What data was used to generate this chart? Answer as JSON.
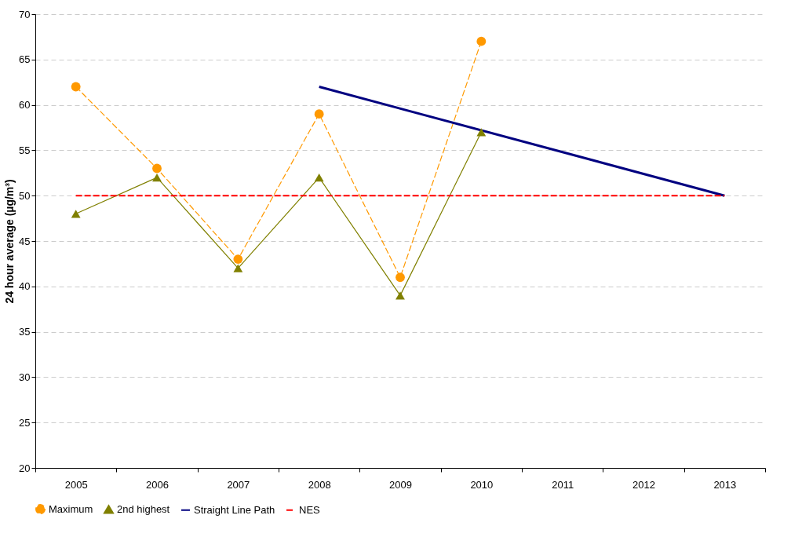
{
  "chart_data": {
    "type": "line",
    "ylabel": "24 hour average (µg/m³)",
    "categories": [
      "2005",
      "2006",
      "2007",
      "2008",
      "2009",
      "2010",
      "2011",
      "2012",
      "2013"
    ],
    "series": [
      {
        "name": "Maximum",
        "color": "#ff9900",
        "marker": "circle",
        "line_style": "dashed",
        "values": [
          62,
          53,
          43,
          59,
          41,
          67,
          null,
          null,
          null
        ]
      },
      {
        "name": "2nd highest",
        "color": "#808000",
        "marker": "triangle",
        "line_style": "solid",
        "values": [
          48,
          52,
          42,
          52,
          39,
          57,
          null,
          null,
          null
        ]
      },
      {
        "name": "Straight Line Path",
        "color": "#000080",
        "marker": "none",
        "line_style": "solid",
        "values": [
          null,
          null,
          null,
          62,
          null,
          null,
          null,
          null,
          50
        ]
      },
      {
        "name": "NES",
        "color": "#ff0000",
        "marker": "none",
        "line_style": "dashed",
        "values": [
          50,
          50,
          50,
          50,
          50,
          50,
          50,
          50,
          50
        ]
      }
    ],
    "ylim": [
      20,
      70
    ],
    "yticks": [
      20,
      25,
      30,
      35,
      40,
      45,
      50,
      55,
      60,
      65,
      70
    ],
    "grid": "y",
    "legend": "bottom"
  }
}
